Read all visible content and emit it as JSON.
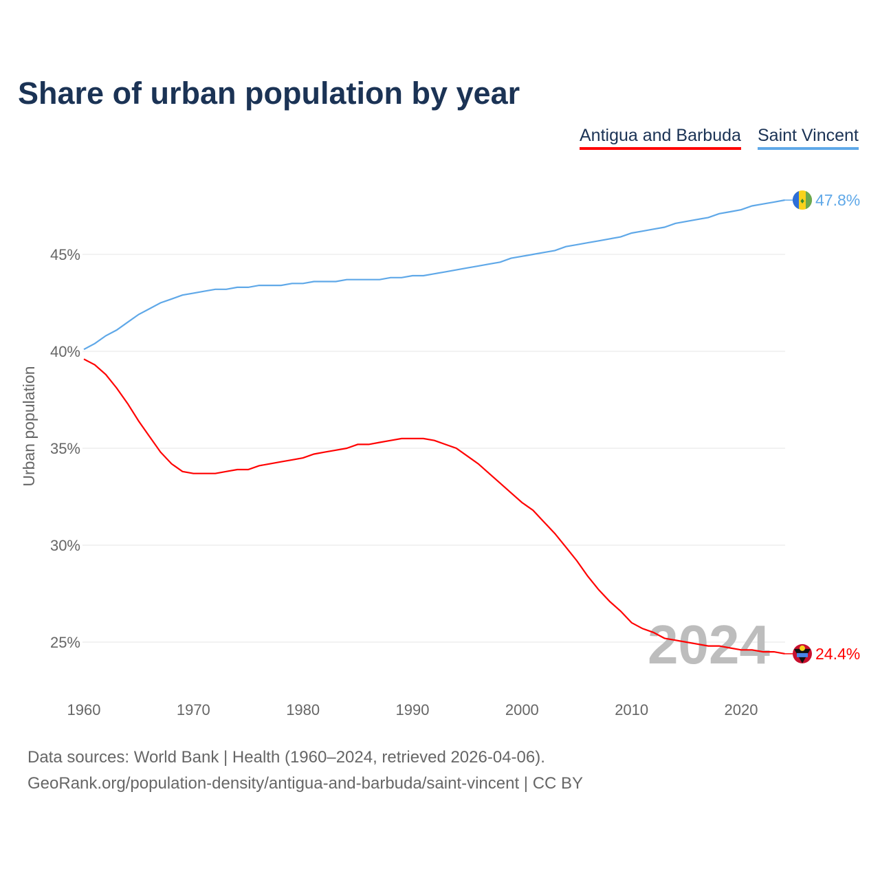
{
  "chart_data": {
    "type": "line",
    "title": "Share of urban population by year",
    "xlabel": "",
    "ylabel": "Urban population",
    "xlim": [
      1960,
      2024
    ],
    "ylim": [
      23,
      49
    ],
    "x_ticks": [
      1960,
      1970,
      1980,
      1990,
      2000,
      2010,
      2020
    ],
    "y_ticks": [
      25,
      30,
      35,
      40,
      45
    ],
    "y_tick_labels": [
      "25%",
      "30%",
      "35%",
      "40%",
      "45%"
    ],
    "grid": true,
    "legend_placement": "top-right",
    "watermark_year": "2024",
    "x": [
      1960,
      1961,
      1962,
      1963,
      1964,
      1965,
      1966,
      1967,
      1968,
      1969,
      1970,
      1971,
      1972,
      1973,
      1974,
      1975,
      1976,
      1977,
      1978,
      1979,
      1980,
      1981,
      1982,
      1983,
      1984,
      1985,
      1986,
      1987,
      1988,
      1989,
      1990,
      1991,
      1992,
      1993,
      1994,
      1995,
      1996,
      1997,
      1998,
      1999,
      2000,
      2001,
      2002,
      2003,
      2004,
      2005,
      2006,
      2007,
      2008,
      2009,
      2010,
      2011,
      2012,
      2013,
      2014,
      2015,
      2016,
      2017,
      2018,
      2019,
      2020,
      2021,
      2022,
      2023,
      2024
    ],
    "series": [
      {
        "name": "Antigua and Barbuda",
        "color": "#ff0000",
        "end_label": "24.4%",
        "values": [
          39.6,
          39.3,
          38.8,
          38.1,
          37.3,
          36.4,
          35.6,
          34.8,
          34.2,
          33.8,
          33.7,
          33.7,
          33.7,
          33.8,
          33.9,
          33.9,
          34.1,
          34.2,
          34.3,
          34.4,
          34.5,
          34.7,
          34.8,
          34.9,
          35.0,
          35.2,
          35.2,
          35.3,
          35.4,
          35.5,
          35.5,
          35.5,
          35.4,
          35.2,
          35.0,
          34.6,
          34.2,
          33.7,
          33.2,
          32.7,
          32.2,
          31.8,
          31.2,
          30.6,
          29.9,
          29.2,
          28.4,
          27.7,
          27.1,
          26.6,
          26.0,
          25.7,
          25.5,
          25.2,
          25.1,
          25.0,
          24.9,
          24.8,
          24.8,
          24.7,
          24.6,
          24.6,
          24.5,
          24.5,
          24.4
        ]
      },
      {
        "name": "Saint Vincent",
        "color": "#5fa8e8",
        "end_label": "47.8%",
        "values": [
          40.1,
          40.4,
          40.8,
          41.1,
          41.5,
          41.9,
          42.2,
          42.5,
          42.7,
          42.9,
          43.0,
          43.1,
          43.2,
          43.2,
          43.3,
          43.3,
          43.4,
          43.4,
          43.4,
          43.5,
          43.5,
          43.6,
          43.6,
          43.6,
          43.7,
          43.7,
          43.7,
          43.7,
          43.8,
          43.8,
          43.9,
          43.9,
          44.0,
          44.1,
          44.2,
          44.3,
          44.4,
          44.5,
          44.6,
          44.8,
          44.9,
          45.0,
          45.1,
          45.2,
          45.4,
          45.5,
          45.6,
          45.7,
          45.8,
          45.9,
          46.1,
          46.2,
          46.3,
          46.4,
          46.6,
          46.7,
          46.8,
          46.9,
          47.1,
          47.2,
          47.3,
          47.5,
          47.6,
          47.7,
          47.8
        ]
      }
    ]
  },
  "footer": {
    "sources": "Data sources: World Bank | Health (1960–2024, retrieved 2026-04-06).",
    "credit": "GeoRank.org/population-density/antigua-and-barbuda/saint-vincent | CC BY"
  }
}
